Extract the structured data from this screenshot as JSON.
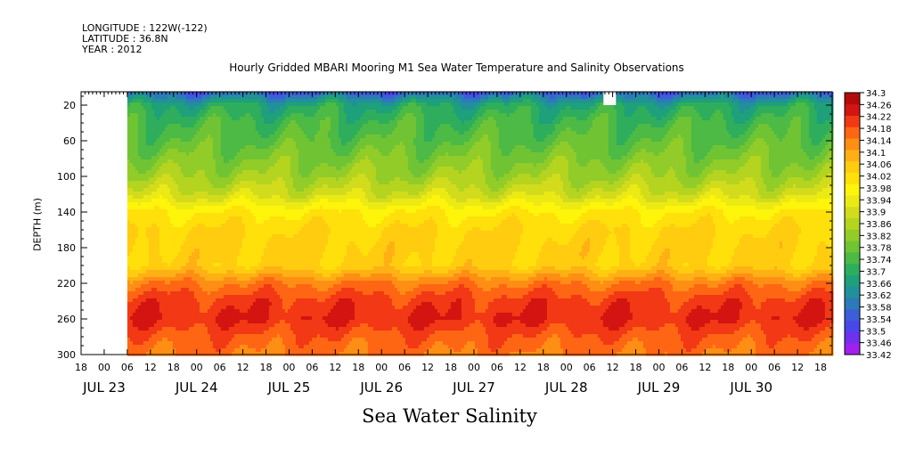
{
  "header": {
    "longitude": "LONGITUDE : 122W(-122)",
    "latitude": "LATITUDE : 36.8N",
    "year": "YEAR : 2012"
  },
  "chart_data": {
    "type": "heatmap",
    "title": "Hourly Gridded MBARI Mooring M1 Sea Water Temperature and Salinity Observations",
    "caption": "Sea Water Salinity",
    "xlabel": "",
    "ylabel": "DEPTH (m)",
    "y_inverted": true,
    "ylim": [
      300,
      5
    ],
    "y_ticks": [
      20,
      60,
      100,
      140,
      180,
      220,
      260,
      300
    ],
    "x_start": "2012-07-22T18:00",
    "x_end": "2012-07-30T21:00",
    "data_start": "2012-07-23T06:00",
    "hour_ticks": [
      {
        "t": "2012-07-22T18:00",
        "label": "18"
      },
      {
        "t": "2012-07-23T00:00",
        "label": "00"
      },
      {
        "t": "2012-07-23T06:00",
        "label": "06"
      },
      {
        "t": "2012-07-23T12:00",
        "label": "12"
      },
      {
        "t": "2012-07-23T18:00",
        "label": "18"
      },
      {
        "t": "2012-07-24T00:00",
        "label": "00"
      },
      {
        "t": "2012-07-24T06:00",
        "label": "06"
      },
      {
        "t": "2012-07-24T12:00",
        "label": "12"
      },
      {
        "t": "2012-07-24T18:00",
        "label": "18"
      },
      {
        "t": "2012-07-25T00:00",
        "label": "00"
      },
      {
        "t": "2012-07-25T06:00",
        "label": "06"
      },
      {
        "t": "2012-07-25T12:00",
        "label": "12"
      },
      {
        "t": "2012-07-25T18:00",
        "label": "18"
      },
      {
        "t": "2012-07-26T00:00",
        "label": "00"
      },
      {
        "t": "2012-07-26T06:00",
        "label": "06"
      },
      {
        "t": "2012-07-26T12:00",
        "label": "12"
      },
      {
        "t": "2012-07-26T18:00",
        "label": "18"
      },
      {
        "t": "2012-07-27T00:00",
        "label": "00"
      },
      {
        "t": "2012-07-27T06:00",
        "label": "06"
      },
      {
        "t": "2012-07-27T12:00",
        "label": "12"
      },
      {
        "t": "2012-07-27T18:00",
        "label": "18"
      },
      {
        "t": "2012-07-28T00:00",
        "label": "00"
      },
      {
        "t": "2012-07-28T06:00",
        "label": "06"
      },
      {
        "t": "2012-07-28T12:00",
        "label": "12"
      },
      {
        "t": "2012-07-28T18:00",
        "label": "18"
      },
      {
        "t": "2012-07-29T00:00",
        "label": "00"
      },
      {
        "t": "2012-07-29T06:00",
        "label": "06"
      },
      {
        "t": "2012-07-29T12:00",
        "label": "12"
      },
      {
        "t": "2012-07-29T18:00",
        "label": "18"
      },
      {
        "t": "2012-07-30T00:00",
        "label": "00"
      },
      {
        "t": "2012-07-30T06:00",
        "label": "06"
      },
      {
        "t": "2012-07-30T12:00",
        "label": "12"
      },
      {
        "t": "2012-07-30T18:00",
        "label": "18"
      }
    ],
    "day_labels": [
      {
        "t": "2012-07-23T00:00",
        "label": "JUL 23"
      },
      {
        "t": "2012-07-24T00:00",
        "label": "JUL 24"
      },
      {
        "t": "2012-07-25T00:00",
        "label": "JUL 25"
      },
      {
        "t": "2012-07-26T00:00",
        "label": "JUL 26"
      },
      {
        "t": "2012-07-27T00:00",
        "label": "JUL 27"
      },
      {
        "t": "2012-07-28T00:00",
        "label": "JUL 28"
      },
      {
        "t": "2012-07-29T00:00",
        "label": "JUL 29"
      },
      {
        "t": "2012-07-30T00:00",
        "label": "JUL 30"
      }
    ],
    "depths": [
      5,
      20,
      40,
      60,
      80,
      100,
      120,
      140,
      160,
      180,
      200,
      220,
      240,
      260,
      280,
      300
    ],
    "profile_salinity": [
      33.56,
      33.7,
      33.75,
      33.78,
      33.82,
      33.86,
      33.92,
      34.02,
      34.06,
      34.07,
      34.07,
      34.18,
      34.24,
      34.26,
      34.21,
      34.18
    ],
    "missing_block": {
      "t": "2012-07-28T11:00",
      "depth_range": [
        5,
        20
      ]
    },
    "colorbar": {
      "levels": [
        33.42,
        33.46,
        33.5,
        33.54,
        33.58,
        33.62,
        33.66,
        33.7,
        33.74,
        33.78,
        33.82,
        33.86,
        33.9,
        33.94,
        33.98,
        34.02,
        34.06,
        34.1,
        34.14,
        34.18,
        34.22,
        34.26,
        34.3
      ],
      "colors": [
        "#a020f0",
        "#7030ee",
        "#4848ea",
        "#3a5fd8",
        "#2c7ab8",
        "#22909a",
        "#1ea07a",
        "#2eae5c",
        "#4cba44",
        "#70c434",
        "#92cc28",
        "#b4d420",
        "#d2dc1c",
        "#ecea14",
        "#fff50a",
        "#ffe00a",
        "#ffcc10",
        "#ffb014",
        "#ff8e14",
        "#ff6614",
        "#f23814",
        "#d41410",
        "#b40a0a"
      ]
    }
  }
}
